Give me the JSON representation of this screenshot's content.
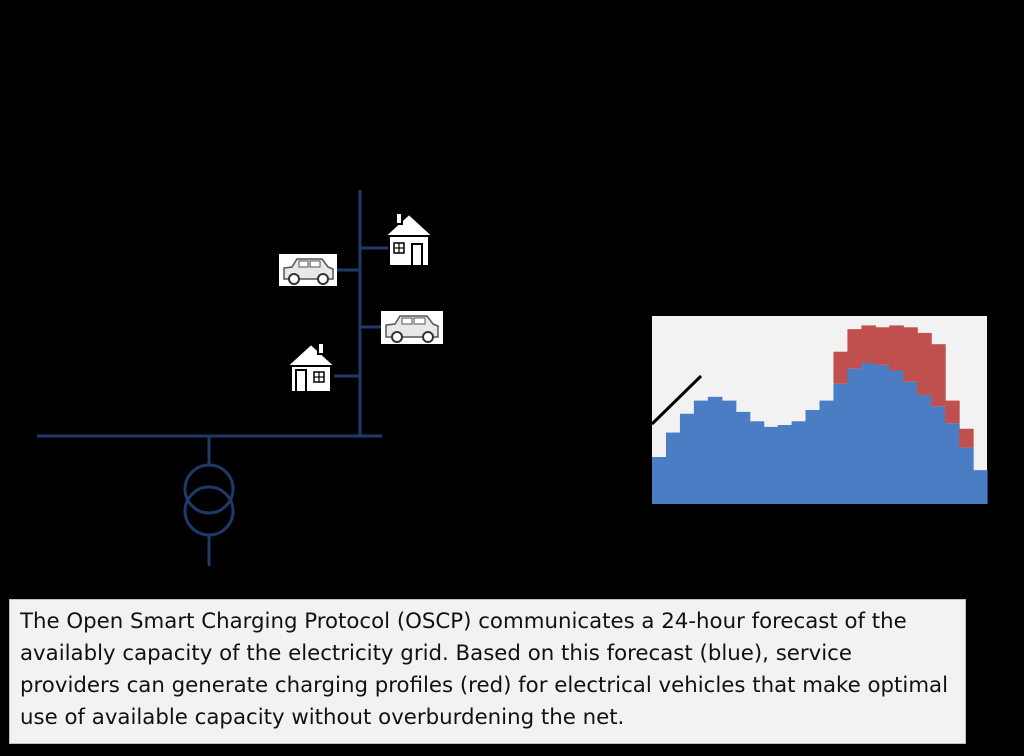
{
  "caption": "The Open Smart Charging Protocol (OSCP) communicates a 24-hour forecast of the availably capacity of the electricity grid. Based on this forecast (blue), service providers can generate charging profiles (red) for electrical vehicles that make optimal use of available capacity without overburdening the net.",
  "colors": {
    "background": "#000000",
    "grid_line": "#1f3a68",
    "forecast_blue": "#4a7dc4",
    "profile_red": "#c0504d",
    "chart_background": "#f2f2f2"
  },
  "icons": [
    "transformer-icon",
    "house-icon",
    "car-icon"
  ],
  "chart_data": {
    "type": "area",
    "step": true,
    "x": [
      1,
      2,
      3,
      4,
      5,
      6,
      7,
      8,
      9,
      10,
      11,
      12,
      13,
      14,
      15,
      16,
      17,
      18,
      19,
      20,
      21,
      22,
      23,
      24
    ],
    "series": [
      {
        "values": [
          25,
          38,
          48,
          55,
          57,
          55,
          49,
          44,
          41,
          42,
          44,
          50,
          55,
          64,
          72,
          75,
          74,
          71,
          65,
          58,
          52,
          43,
          30,
          18
        ]
      },
      {
        "values": [
          0,
          0,
          0,
          0,
          0,
          0,
          0,
          0,
          0,
          0,
          0,
          0,
          0,
          17,
          21,
          20,
          20,
          24,
          29,
          33,
          33,
          12,
          10,
          0
        ]
      }
    ],
    "ylim": [
      0,
      100
    ],
    "grid": false
  }
}
